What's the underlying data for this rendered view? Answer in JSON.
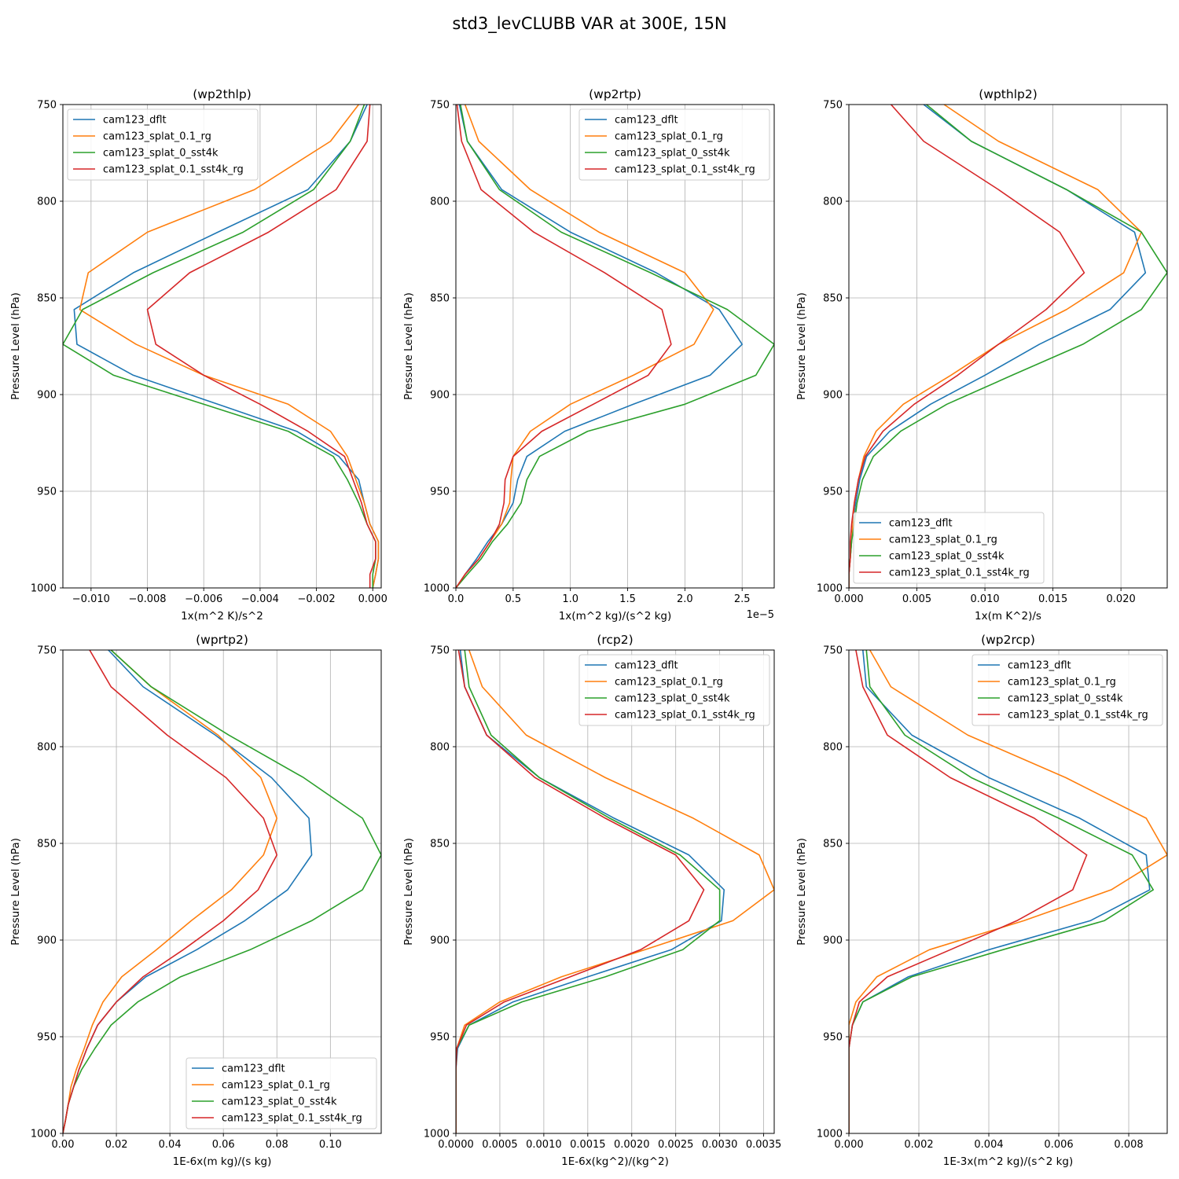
{
  "figure_title": "std3_levCLUBB VAR at 300E, 15N",
  "series_colors": [
    "#1f77b4",
    "#ff7f0e",
    "#2ca02c",
    "#d62728"
  ],
  "chart_data": [
    {
      "type": "line",
      "title": "(wp2thlp)",
      "xlabel": "1x(m^2 K)/s^2",
      "ylabel": "Pressure Level (hPa)",
      "xlim": [
        -0.011,
        0.0003
      ],
      "ylim": [
        1000,
        750
      ],
      "y_inverted": true,
      "xticks": [
        -0.01,
        -0.008,
        -0.006,
        -0.004,
        -0.002,
        0.0
      ],
      "xtick_labels": [
        "−0.010",
        "−0.008",
        "−0.006",
        "−0.004",
        "−0.002",
        "0.000"
      ],
      "yticks": [
        750,
        800,
        850,
        900,
        950,
        1000
      ],
      "ytick_labels": [
        "750",
        "800",
        "850",
        "900",
        "950",
        "1000"
      ],
      "grid": true,
      "legend_position": "upper-left",
      "y": [
        750,
        769,
        794,
        816,
        837,
        856,
        874,
        890,
        905,
        919,
        932,
        944,
        956,
        967,
        976,
        985,
        993,
        1000
      ],
      "series": [
        {
          "name": "cam123_dflt",
          "values": [
            -0.0002,
            -0.0008,
            -0.0023,
            -0.0055,
            -0.0085,
            -0.0106,
            -0.0105,
            -0.0085,
            -0.0055,
            -0.0027,
            -0.0012,
            -0.0005,
            -0.0003,
            -0.0001,
            0.0002,
            0.0002,
            0.0001,
            0.0
          ]
        },
        {
          "name": "cam123_splat_0.1_rg",
          "values": [
            -0.0005,
            -0.0015,
            -0.0042,
            -0.008,
            -0.0101,
            -0.0104,
            -0.0084,
            -0.006,
            -0.003,
            -0.0015,
            -0.0009,
            -0.0006,
            -0.0003,
            -0.0001,
            0.0002,
            0.0002,
            0.0001,
            0.0
          ]
        },
        {
          "name": "cam123_splat_0_sst4k",
          "values": [
            -0.0003,
            -0.0008,
            -0.0021,
            -0.0046,
            -0.0078,
            -0.0103,
            -0.011,
            -0.0092,
            -0.006,
            -0.003,
            -0.0014,
            -0.0009,
            -0.0005,
            -0.0002,
            0.0001,
            0.0001,
            0.0,
            0.0
          ]
        },
        {
          "name": "cam123_splat_0.1_sst4k_rg",
          "values": [
            -0.0001,
            -0.0002,
            -0.0013,
            -0.0037,
            -0.0065,
            -0.008,
            -0.0077,
            -0.006,
            -0.004,
            -0.0023,
            -0.001,
            -0.0007,
            -0.0004,
            -0.0002,
            0.0001,
            0.0001,
            -0.0001,
            -0.0001
          ]
        }
      ]
    },
    {
      "type": "line",
      "title": "(wp2rtp)",
      "xlabel": "1x(m^2 kg)/(s^2 kg)",
      "ylabel": "Pressure Level (hPa)",
      "offset_text": "1e−5",
      "xlim": [
        0.0,
        2.78
      ],
      "ylim": [
        1000,
        750
      ],
      "y_inverted": true,
      "xticks": [
        0.0,
        0.5,
        1.0,
        1.5,
        2.0,
        2.5
      ],
      "xtick_labels": [
        "0.0",
        "0.5",
        "1.0",
        "1.5",
        "2.0",
        "2.5"
      ],
      "yticks": [
        750,
        800,
        850,
        900,
        950,
        1000
      ],
      "ytick_labels": [
        "750",
        "800",
        "850",
        "900",
        "950",
        "1000"
      ],
      "grid": true,
      "legend_position": "upper-right",
      "y": [
        750,
        769,
        794,
        816,
        837,
        856,
        874,
        890,
        905,
        919,
        932,
        944,
        956,
        967,
        976,
        985,
        993,
        1000
      ],
      "series": [
        {
          "name": "cam123_dflt",
          "values": [
            0.03,
            0.1,
            0.4,
            1.0,
            1.75,
            2.3,
            2.5,
            2.22,
            1.55,
            0.95,
            0.62,
            0.54,
            0.5,
            0.4,
            0.28,
            0.18,
            0.08,
            0.0
          ]
        },
        {
          "name": "cam123_splat_0.1_rg",
          "values": [
            0.08,
            0.2,
            0.65,
            1.25,
            2.0,
            2.25,
            2.08,
            1.55,
            1.0,
            0.65,
            0.5,
            0.48,
            0.47,
            0.4,
            0.3,
            0.2,
            0.08,
            0.0
          ]
        },
        {
          "name": "cam123_splat_0_sst4k",
          "values": [
            0.04,
            0.1,
            0.38,
            0.92,
            1.7,
            2.37,
            2.78,
            2.62,
            2.0,
            1.15,
            0.73,
            0.62,
            0.57,
            0.45,
            0.32,
            0.22,
            0.1,
            0.0
          ]
        },
        {
          "name": "cam123_splat_0.1_sst4k_rg",
          "values": [
            0.01,
            0.05,
            0.22,
            0.68,
            1.3,
            1.8,
            1.88,
            1.68,
            1.2,
            0.75,
            0.5,
            0.43,
            0.42,
            0.38,
            0.3,
            0.2,
            0.08,
            0.0
          ]
        }
      ]
    },
    {
      "type": "line",
      "title": "(wpthlp2)",
      "xlabel": "1x(m K^2)/s",
      "ylabel": "Pressure Level (hPa)",
      "xlim": [
        0.0,
        0.0234
      ],
      "ylim": [
        1000,
        750
      ],
      "y_inverted": true,
      "xticks": [
        0.0,
        0.005,
        0.01,
        0.015,
        0.02
      ],
      "xtick_labels": [
        "0.000",
        "0.005",
        "0.010",
        "0.015",
        "0.020"
      ],
      "yticks": [
        750,
        800,
        850,
        900,
        950,
        1000
      ],
      "ytick_labels": [
        "750",
        "800",
        "850",
        "900",
        "950",
        "1000"
      ],
      "grid": true,
      "legend_position": "lower-left",
      "y": [
        750,
        769,
        794,
        816,
        837,
        856,
        874,
        890,
        905,
        919,
        932,
        944,
        956,
        967,
        976,
        985,
        993,
        1000
      ],
      "series": [
        {
          "name": "cam123_dflt",
          "values": [
            0.0055,
            0.009,
            0.016,
            0.021,
            0.0218,
            0.0192,
            0.014,
            0.01,
            0.006,
            0.003,
            0.0013,
            0.0008,
            0.0005,
            0.0003,
            0.0002,
            0.0001,
            0.0,
            0.0
          ]
        },
        {
          "name": "cam123_splat_0.1_rg",
          "values": [
            0.007,
            0.011,
            0.0183,
            0.0215,
            0.0202,
            0.016,
            0.011,
            0.0075,
            0.004,
            0.002,
            0.0011,
            0.0007,
            0.0004,
            0.0003,
            0.0002,
            0.0001,
            0.0,
            0.0
          ]
        },
        {
          "name": "cam123_splat_0_sst4k",
          "values": [
            0.0057,
            0.009,
            0.016,
            0.0215,
            0.0234,
            0.0215,
            0.0172,
            0.012,
            0.0072,
            0.0038,
            0.0018,
            0.001,
            0.0006,
            0.0004,
            0.0002,
            0.0001,
            0.0,
            0.0
          ]
        },
        {
          "name": "cam123_splat_0.1_sst4k_rg",
          "values": [
            0.0031,
            0.0055,
            0.011,
            0.0155,
            0.0173,
            0.0145,
            0.011,
            0.008,
            0.0048,
            0.0025,
            0.0012,
            0.0007,
            0.0004,
            0.0002,
            0.0001,
            0.0001,
            0.0,
            0.0
          ]
        }
      ]
    },
    {
      "type": "line",
      "title": "(wprtp2)",
      "xlabel": "1E-6x(m kg)/(s kg)",
      "ylabel": "Pressure Level (hPa)",
      "xlim": [
        0.0,
        0.119
      ],
      "ylim": [
        1000,
        750
      ],
      "y_inverted": true,
      "xticks": [
        0.0,
        0.02,
        0.04,
        0.06,
        0.08,
        0.1
      ],
      "xtick_labels": [
        "0.00",
        "0.02",
        "0.04",
        "0.06",
        "0.08",
        "0.10"
      ],
      "yticks": [
        750,
        800,
        850,
        900,
        950,
        1000
      ],
      "ytick_labels": [
        "750",
        "800",
        "850",
        "900",
        "950",
        "1000"
      ],
      "grid": true,
      "legend_position": "lower-right",
      "y": [
        750,
        769,
        794,
        816,
        837,
        856,
        874,
        890,
        905,
        919,
        932,
        944,
        956,
        967,
        976,
        985,
        993,
        1000
      ],
      "series": [
        {
          "name": "cam123_dflt",
          "values": [
            0.017,
            0.03,
            0.057,
            0.078,
            0.092,
            0.093,
            0.084,
            0.068,
            0.05,
            0.031,
            0.02,
            0.013,
            0.009,
            0.006,
            0.004,
            0.002,
            0.001,
            0.0
          ]
        },
        {
          "name": "cam123_splat_0.1_rg",
          "values": [
            0.018,
            0.033,
            0.058,
            0.074,
            0.08,
            0.075,
            0.063,
            0.048,
            0.035,
            0.022,
            0.015,
            0.011,
            0.008,
            0.005,
            0.003,
            0.002,
            0.001,
            0.0
          ]
        },
        {
          "name": "cam123_splat_0_sst4k",
          "values": [
            0.018,
            0.033,
            0.062,
            0.09,
            0.112,
            0.119,
            0.112,
            0.093,
            0.07,
            0.044,
            0.028,
            0.018,
            0.012,
            0.007,
            0.004,
            0.002,
            0.001,
            0.0
          ]
        },
        {
          "name": "cam123_splat_0.1_sst4k_rg",
          "values": [
            0.01,
            0.018,
            0.039,
            0.061,
            0.075,
            0.08,
            0.073,
            0.06,
            0.045,
            0.03,
            0.02,
            0.013,
            0.009,
            0.006,
            0.004,
            0.002,
            0.001,
            0.0
          ]
        }
      ]
    },
    {
      "type": "line",
      "title": "(rcp2)",
      "xlabel": "1E-6x(kg^2)/(kg^2)",
      "ylabel": "Pressure Level (hPa)",
      "xlim": [
        0.0,
        0.00362
      ],
      "ylim": [
        1000,
        750
      ],
      "y_inverted": true,
      "xticks": [
        0.0,
        0.0005,
        0.001,
        0.0015,
        0.002,
        0.0025,
        0.003,
        0.0035
      ],
      "xtick_labels": [
        "0.0000",
        "0.0005",
        "0.0010",
        "0.0015",
        "0.0020",
        "0.0025",
        "0.0030",
        "0.0035"
      ],
      "yticks": [
        750,
        800,
        850,
        900,
        950,
        1000
      ],
      "ytick_labels": [
        "750",
        "800",
        "850",
        "900",
        "950",
        "1000"
      ],
      "grid": true,
      "legend_position": "upper-right",
      "y": [
        750,
        769,
        794,
        816,
        837,
        856,
        874,
        890,
        905,
        919,
        932,
        944,
        956,
        967,
        976,
        985,
        993,
        1000
      ],
      "series": [
        {
          "name": "cam123_dflt",
          "values": [
            5e-05,
            0.0001,
            0.00035,
            0.00095,
            0.0018,
            0.00265,
            0.00305,
            0.00302,
            0.00245,
            0.0015,
            0.00065,
            0.00015,
            2e-05,
            0.0,
            0.0,
            0.0,
            0.0,
            0.0
          ]
        },
        {
          "name": "cam123_splat_0.1_rg",
          "values": [
            0.00015,
            0.0003,
            0.0008,
            0.0017,
            0.0027,
            0.00345,
            0.00362,
            0.00315,
            0.00215,
            0.0012,
            0.0005,
            0.0001,
            1e-05,
            0.0,
            0.0,
            0.0,
            0.0,
            0.0
          ]
        },
        {
          "name": "cam123_splat_0_sst4k",
          "values": [
            0.0001,
            0.00015,
            0.0004,
            0.00095,
            0.00175,
            0.00255,
            0.003,
            0.003,
            0.00258,
            0.0017,
            0.00075,
            0.00015,
            1e-05,
            0.0,
            0.0,
            0.0,
            0.0,
            0.0
          ]
        },
        {
          "name": "cam123_splat_0.1_sst4k_rg",
          "values": [
            3e-05,
            0.0001,
            0.00035,
            0.0009,
            0.0017,
            0.0025,
            0.00282,
            0.00265,
            0.0021,
            0.0013,
            0.00055,
            0.00012,
            1e-05,
            0.0,
            0.0,
            0.0,
            0.0,
            0.0
          ]
        }
      ]
    },
    {
      "type": "line",
      "title": "(wp2rcp)",
      "xlabel": "1E-3x(m^2 kg)/(s^2 kg)",
      "ylabel": "Pressure Level (hPa)",
      "xlim": [
        0.0,
        0.0091
      ],
      "ylim": [
        1000,
        750
      ],
      "y_inverted": true,
      "xticks": [
        0.0,
        0.002,
        0.004,
        0.006,
        0.008
      ],
      "xtick_labels": [
        "0.000",
        "0.002",
        "0.004",
        "0.006",
        "0.008"
      ],
      "yticks": [
        750,
        800,
        850,
        900,
        950,
        1000
      ],
      "ytick_labels": [
        "750",
        "800",
        "850",
        "900",
        "950",
        "1000"
      ],
      "grid": true,
      "legend_position": "upper-right",
      "y": [
        750,
        769,
        794,
        816,
        837,
        856,
        874,
        890,
        905,
        919,
        932,
        944,
        956,
        967,
        976,
        985,
        993,
        1000
      ],
      "series": [
        {
          "name": "cam123_dflt",
          "values": [
            0.0004,
            0.0005,
            0.0018,
            0.004,
            0.0066,
            0.0085,
            0.0086,
            0.0069,
            0.004,
            0.0017,
            0.0004,
            0.0001,
            0.0,
            0.0,
            0.0,
            0.0,
            0.0,
            0.0
          ]
        },
        {
          "name": "cam123_splat_0.1_rg",
          "values": [
            0.0006,
            0.0012,
            0.0034,
            0.0062,
            0.0085,
            0.0091,
            0.0075,
            0.005,
            0.0023,
            0.0008,
            0.0002,
            0.0,
            0.0,
            0.0,
            0.0,
            0.0,
            0.0,
            0.0
          ]
        },
        {
          "name": "cam123_splat_0_sst4k",
          "values": [
            0.0005,
            0.0006,
            0.0016,
            0.0035,
            0.006,
            0.0081,
            0.0087,
            0.0073,
            0.0044,
            0.0018,
            0.0004,
            0.0001,
            0.0,
            0.0,
            0.0,
            0.0,
            0.0,
            0.0
          ]
        },
        {
          "name": "cam123_splat_0.1_sst4k_rg",
          "values": [
            0.0002,
            0.0004,
            0.0011,
            0.0029,
            0.0053,
            0.0068,
            0.0064,
            0.0048,
            0.0029,
            0.0011,
            0.0003,
            0.0001,
            0.0,
            0.0,
            0.0,
            0.0,
            0.0,
            0.0
          ]
        }
      ]
    }
  ]
}
